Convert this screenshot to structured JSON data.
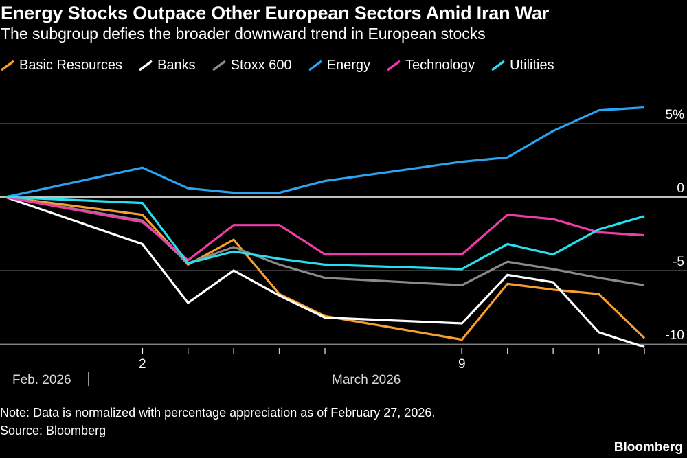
{
  "chart_data": {
    "type": "line",
    "title": "Energy Stocks Outpace Other European Sectors Amid Iran War",
    "subtitle": "The subgroup defies the broader downward trend in European stocks",
    "x": [
      "2026-02-27",
      "2026-03-02",
      "2026-03-03",
      "2026-03-04",
      "2026-03-05",
      "2026-03-06",
      "2026-03-09",
      "2026-03-10",
      "2026-03-11",
      "2026-03-12",
      "2026-03-13"
    ],
    "x_ticks": [
      {
        "date": "2026-03-02",
        "label": "2"
      },
      {
        "date": "2026-03-09",
        "label": "9"
      }
    ],
    "x_month_labels": [
      {
        "label": "Feb. 2026",
        "date": "2026-02-27"
      },
      {
        "label": "March 2026",
        "date": "2026-03-06"
      }
    ],
    "xlim": [
      "2026-02-27",
      "2026-03-13"
    ],
    "y_ticks": [
      {
        "value": 5,
        "label": "5%"
      },
      {
        "value": 0,
        "label": "0"
      },
      {
        "value": -5,
        "label": "-5"
      },
      {
        "value": -10,
        "label": "-10"
      }
    ],
    "ylim": [
      -10.5,
      6
    ],
    "grid": true,
    "legend_position": "top-left",
    "series": [
      {
        "name": "Basic Resources",
        "color": "#f7a030",
        "values": [
          0,
          -1.2,
          -4.6,
          -2.9,
          -6.6,
          -8.1,
          -9.7,
          -5.9,
          -6.3,
          -6.6,
          -9.6
        ]
      },
      {
        "name": "Banks",
        "color": "#ffffff",
        "values": [
          0,
          -3.2,
          -7.2,
          -5.0,
          -6.7,
          -8.2,
          -8.6,
          -5.3,
          -5.8,
          -9.2,
          -10.2
        ]
      },
      {
        "name": "Stoxx 600",
        "color": "#8a8a8a",
        "values": [
          0,
          -1.6,
          -4.5,
          -3.4,
          -4.6,
          -5.5,
          -6.0,
          -4.4,
          -4.9,
          -5.5,
          -6.0
        ]
      },
      {
        "name": "Energy",
        "color": "#2aa3f0",
        "values": [
          0,
          2.0,
          0.6,
          0.3,
          0.3,
          1.1,
          2.4,
          2.7,
          4.5,
          5.9,
          6.1
        ]
      },
      {
        "name": "Technology",
        "color": "#f03ca8",
        "values": [
          0,
          -1.7,
          -4.3,
          -1.9,
          -1.9,
          -3.9,
          -3.9,
          -1.2,
          -1.5,
          -2.4,
          -2.6
        ]
      },
      {
        "name": "Utilities",
        "color": "#28dff0",
        "values": [
          0,
          -0.4,
          -4.5,
          -3.7,
          -4.2,
          -4.6,
          -4.9,
          -3.2,
          -3.9,
          -2.2,
          -1.3
        ]
      }
    ]
  },
  "footer": {
    "note": "Note: Data is normalized with percentage appreciation as of February 27, 2026.",
    "source": "Source: Bloomberg",
    "brand": "Bloomberg"
  }
}
